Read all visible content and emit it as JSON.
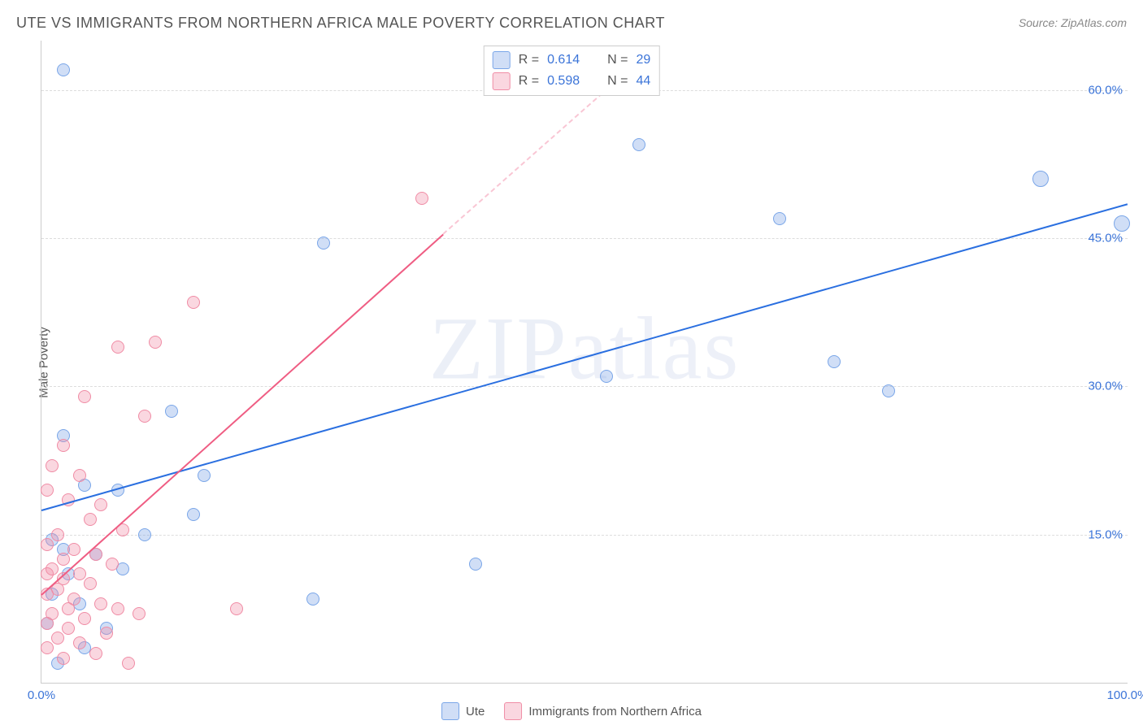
{
  "title": "UTE VS IMMIGRANTS FROM NORTHERN AFRICA MALE POVERTY CORRELATION CHART",
  "source": "Source: ZipAtlas.com",
  "ylabel": "Male Poverty",
  "watermark": "ZIPatlas",
  "chart": {
    "type": "scatter",
    "xlim": [
      0,
      100
    ],
    "ylim": [
      0,
      65
    ],
    "x_ticks": [
      {
        "value": 0,
        "label": "0.0%"
      },
      {
        "value": 100,
        "label": "100.0%"
      }
    ],
    "y_ticks": [
      {
        "value": 15,
        "label": "15.0%"
      },
      {
        "value": 30,
        "label": "30.0%"
      },
      {
        "value": 45,
        "label": "45.0%"
      },
      {
        "value": 60,
        "label": "60.0%"
      }
    ],
    "x_minor_gridlines": [
      20,
      40,
      60,
      80
    ],
    "background_color": "#ffffff",
    "grid_color": "#dddddd",
    "axis_color": "#cccccc",
    "tick_label_color": "#3b74d8",
    "marker_radius": 8,
    "marker_radius_big": 10,
    "series": [
      {
        "key": "ute",
        "label": "Ute",
        "color_fill": "rgba(120,160,230,0.35)",
        "color_stroke": "#7aa6e8",
        "trend_color": "#2a6fe0",
        "trend_color_dashed": "rgba(42,111,224,0.4)",
        "r_value": "0.614",
        "n_value": "29",
        "trend": {
          "x1": 0,
          "y1": 17.5,
          "x2": 100,
          "y2": 48.5
        },
        "points": [
          {
            "x": 2.0,
            "y": 62.0
          },
          {
            "x": 55.0,
            "y": 54.5
          },
          {
            "x": 92.0,
            "y": 51.0,
            "big": true
          },
          {
            "x": 68.0,
            "y": 47.0
          },
          {
            "x": 99.5,
            "y": 46.5,
            "big": true
          },
          {
            "x": 26.0,
            "y": 44.5
          },
          {
            "x": 73.0,
            "y": 32.5
          },
          {
            "x": 52.0,
            "y": 31.0
          },
          {
            "x": 78.0,
            "y": 29.5
          },
          {
            "x": 12.0,
            "y": 27.5
          },
          {
            "x": 2.0,
            "y": 25.0
          },
          {
            "x": 15.0,
            "y": 21.0
          },
          {
            "x": 4.0,
            "y": 20.0
          },
          {
            "x": 7.0,
            "y": 19.5
          },
          {
            "x": 14.0,
            "y": 17.0
          },
          {
            "x": 9.5,
            "y": 15.0
          },
          {
            "x": 1.0,
            "y": 14.5
          },
          {
            "x": 2.0,
            "y": 13.5
          },
          {
            "x": 5.0,
            "y": 13.0
          },
          {
            "x": 7.5,
            "y": 11.5
          },
          {
            "x": 40.0,
            "y": 12.0
          },
          {
            "x": 25.0,
            "y": 8.5
          },
          {
            "x": 2.5,
            "y": 11.0
          },
          {
            "x": 1.0,
            "y": 9.0
          },
          {
            "x": 3.5,
            "y": 8.0
          },
          {
            "x": 6.0,
            "y": 5.5
          },
          {
            "x": 0.5,
            "y": 6.0
          },
          {
            "x": 4.0,
            "y": 3.5
          },
          {
            "x": 1.5,
            "y": 2.0
          }
        ]
      },
      {
        "key": "immigrants",
        "label": "Immigrants from Northern Africa",
        "color_fill": "rgba(240,140,165,0.35)",
        "color_stroke": "#f08ca5",
        "trend_color": "#ef5d83",
        "trend_color_dashed": "rgba(239,93,131,0.35)",
        "r_value": "0.598",
        "n_value": "44",
        "trend_solid": {
          "x1": 0,
          "y1": 9.0,
          "x2": 37.0,
          "y2": 45.5
        },
        "trend_dashed": {
          "x1": 37.0,
          "y1": 45.5,
          "x2": 55.0,
          "y2": 63.0
        },
        "points": [
          {
            "x": 35.0,
            "y": 49.0
          },
          {
            "x": 14.0,
            "y": 38.5
          },
          {
            "x": 7.0,
            "y": 34.0
          },
          {
            "x": 10.5,
            "y": 34.5
          },
          {
            "x": 4.0,
            "y": 29.0
          },
          {
            "x": 9.5,
            "y": 27.0
          },
          {
            "x": 2.0,
            "y": 24.0
          },
          {
            "x": 1.0,
            "y": 22.0
          },
          {
            "x": 3.5,
            "y": 21.0
          },
          {
            "x": 0.5,
            "y": 19.5
          },
          {
            "x": 2.5,
            "y": 18.5
          },
          {
            "x": 5.5,
            "y": 18.0
          },
          {
            "x": 4.5,
            "y": 16.5
          },
          {
            "x": 7.5,
            "y": 15.5
          },
          {
            "x": 1.5,
            "y": 15.0
          },
          {
            "x": 0.5,
            "y": 14.0
          },
          {
            "x": 3.0,
            "y": 13.5
          },
          {
            "x": 5.0,
            "y": 13.0
          },
          {
            "x": 2.0,
            "y": 12.5
          },
          {
            "x": 6.5,
            "y": 12.0
          },
          {
            "x": 1.0,
            "y": 11.5
          },
          {
            "x": 0.5,
            "y": 11.0
          },
          {
            "x": 3.5,
            "y": 11.0
          },
          {
            "x": 2.0,
            "y": 10.5
          },
          {
            "x": 4.5,
            "y": 10.0
          },
          {
            "x": 1.5,
            "y": 9.5
          },
          {
            "x": 0.5,
            "y": 9.0
          },
          {
            "x": 3.0,
            "y": 8.5
          },
          {
            "x": 5.5,
            "y": 8.0
          },
          {
            "x": 2.5,
            "y": 7.5
          },
          {
            "x": 7.0,
            "y": 7.5
          },
          {
            "x": 18.0,
            "y": 7.5
          },
          {
            "x": 1.0,
            "y": 7.0
          },
          {
            "x": 4.0,
            "y": 6.5
          },
          {
            "x": 0.5,
            "y": 6.0
          },
          {
            "x": 2.5,
            "y": 5.5
          },
          {
            "x": 6.0,
            "y": 5.0
          },
          {
            "x": 9.0,
            "y": 7.0
          },
          {
            "x": 1.5,
            "y": 4.5
          },
          {
            "x": 3.5,
            "y": 4.0
          },
          {
            "x": 0.5,
            "y": 3.5
          },
          {
            "x": 5.0,
            "y": 3.0
          },
          {
            "x": 2.0,
            "y": 2.5
          },
          {
            "x": 8.0,
            "y": 2.0
          }
        ]
      }
    ]
  },
  "legend_top_labels": {
    "R": "R  =",
    "N": "N  ="
  },
  "legend_bottom": {
    "ute": "Ute",
    "immigrants": "Immigrants from Northern Africa"
  }
}
